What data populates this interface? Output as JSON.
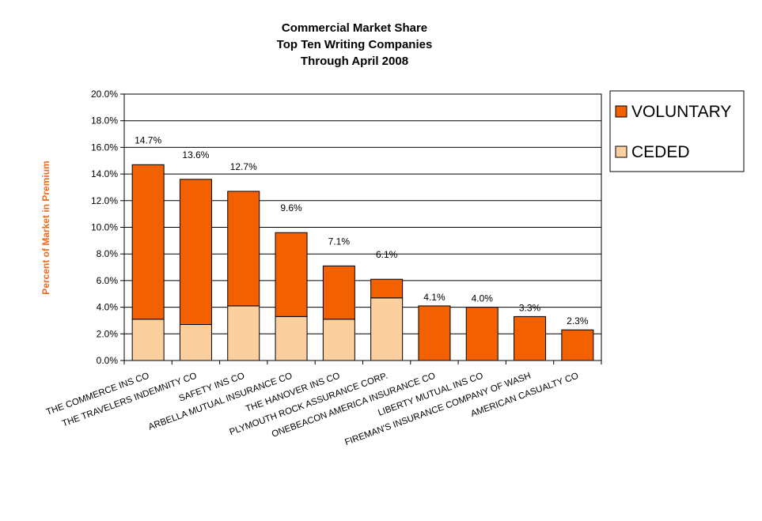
{
  "chart_data": {
    "type": "bar",
    "stacked": true,
    "title": [
      "Commercial Market Share",
      "Top Ten Writing Companies",
      "Through April 2008"
    ],
    "ylabel": "Percent of Market in Premium",
    "xlabel": "",
    "ylim": [
      0,
      20
    ],
    "yticks": [
      "0.0%",
      "2.0%",
      "4.0%",
      "6.0%",
      "8.0%",
      "10.0%",
      "12.0%",
      "14.0%",
      "16.0%",
      "18.0%",
      "20.0%"
    ],
    "ytick_values": [
      0,
      2,
      4,
      6,
      8,
      10,
      12,
      14,
      16,
      18,
      20
    ],
    "grid": true,
    "legend_position": "right",
    "categories": [
      "THE COMMERCE INS CO",
      "THE TRAVELERS INDEMNITY CO",
      "SAFETY INS CO",
      "ARBELLA MUTUAL INSURANCE CO",
      "THE HANOVER INS CO",
      "PLYMOUTH ROCK ASSURANCE CORP.",
      "ONEBEACON AMERICA INSURANCE CO",
      "LIBERTY MUTUAL INS CO",
      "FIREMAN'S INSURANCE COMPANY OF WASH",
      "AMERICAN CASUALTY CO"
    ],
    "totals": [
      14.7,
      13.6,
      12.7,
      9.6,
      7.1,
      6.1,
      4.1,
      4.0,
      3.3,
      2.3
    ],
    "total_labels": [
      "14.7%",
      "13.6%",
      "12.7%",
      "9.6%",
      "7.1%",
      "6.1%",
      "4.1%",
      "4.0%",
      "3.3%",
      "2.3%"
    ],
    "series": [
      {
        "name": "CEDED",
        "color": "#fbcf9e",
        "values": [
          3.1,
          2.7,
          4.1,
          3.3,
          3.1,
          4.7,
          0,
          0,
          0,
          0
        ]
      },
      {
        "name": "VOLUNTARY",
        "color": "#f26000",
        "values": [
          11.6,
          10.9,
          8.6,
          6.3,
          4.0,
          1.4,
          4.1,
          4.0,
          3.3,
          2.3
        ]
      }
    ],
    "legend_order": [
      "VOLUNTARY",
      "CEDED"
    ],
    "colors": {
      "ylabel": "#f26b1d",
      "grid": "#000000"
    }
  }
}
